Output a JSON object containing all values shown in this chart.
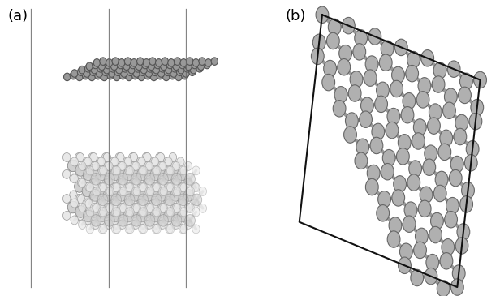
{
  "bg_color": "#ffffff",
  "label_a": "(a)",
  "label_b": "(b)",
  "label_fontsize": 13,
  "graphene_bond_color": "#777777",
  "graphene_atom_color": "#aaaaaa",
  "graphene_atom_edge": "#555555",
  "mos2_mo_color": "#d0d0d0",
  "mos2_s_color": "#e8e8e8",
  "mos2_bond_color": "#bbbbbb",
  "mos2_mo_edge": "#888888",
  "mos2_s_edge": "#999999",
  "vert_line_color": "#666666",
  "border_line_color": "#111111",
  "fig_width": 6.0,
  "fig_height": 3.65
}
